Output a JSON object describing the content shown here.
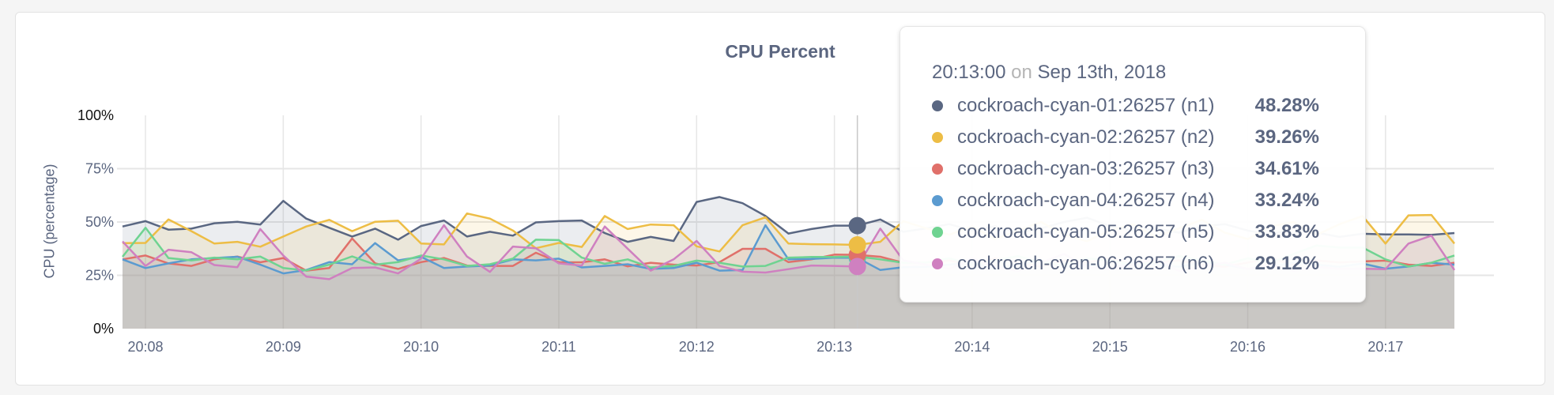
{
  "chart_data": {
    "type": "area",
    "title": "CPU Percent",
    "ylabel": "CPU (percentage)",
    "xlabel": "",
    "ylim": [
      0,
      100
    ],
    "y_ticks": [
      "0%",
      "25%",
      "50%",
      "75%",
      "100%"
    ],
    "y_tick_values": [
      0,
      25,
      50,
      75,
      100
    ],
    "x_ticks": [
      "20:08",
      "20:09",
      "20:10",
      "20:11",
      "20:12",
      "20:13",
      "20:14",
      "20:15",
      "20:16",
      "20:17"
    ],
    "grid": true,
    "x": [
      "20:07:40",
      "20:07:50",
      "20:08:00",
      "20:08:10",
      "20:08:20",
      "20:08:30",
      "20:08:40",
      "20:08:50",
      "20:09:00",
      "20:09:10",
      "20:09:20",
      "20:09:30",
      "20:09:40",
      "20:09:50",
      "20:10:00",
      "20:10:10",
      "20:10:20",
      "20:10:30",
      "20:10:40",
      "20:10:50",
      "20:11:00",
      "20:11:10",
      "20:11:20",
      "20:11:30",
      "20:11:40",
      "20:11:50",
      "20:12:00",
      "20:12:10",
      "20:12:20",
      "20:12:30",
      "20:12:40",
      "20:12:50",
      "20:13:00",
      "20:13:10",
      "20:13:20",
      "20:13:30",
      "20:13:40",
      "20:13:50",
      "20:14:00",
      "20:14:10",
      "20:14:20",
      "20:14:30",
      "20:14:40",
      "20:14:50",
      "20:15:00",
      "20:15:10",
      "20:15:20",
      "20:15:30",
      "20:15:40",
      "20:15:50",
      "20:16:00",
      "20:16:10",
      "20:16:20",
      "20:16:30",
      "20:16:40",
      "20:16:50",
      "20:17:00",
      "20:17:10",
      "20:17:20"
    ],
    "hover_index": 32,
    "series": [
      {
        "name": "cockroach-cyan-01:26257 (n1)",
        "color": "#5a6782",
        "values": [
          47.9,
          50.4,
          46.4,
          46.9,
          49.4,
          50.1,
          48.8,
          59.9,
          51.6,
          47.3,
          43.2,
          46.9,
          41.7,
          48.1,
          50.7,
          43.2,
          45.4,
          43.6,
          49.8,
          50.4,
          50.7,
          44.8,
          40.7,
          43.0,
          41.1,
          59.4,
          61.7,
          58.8,
          52.8,
          44.6,
          46.7,
          48.3,
          48.28,
          51.2,
          45.4,
          47,
          49,
          46,
          48,
          45,
          47,
          50,
          52,
          48,
          46,
          47,
          45,
          48,
          49,
          46,
          44,
          47,
          45,
          43,
          44.5,
          44.2,
          44.2,
          44.0,
          44.8
        ]
      },
      {
        "name": "cockroach-cyan-02:26257 (n2)",
        "color": "#edbd45",
        "values": [
          40.1,
          40.2,
          51.2,
          45.7,
          39.9,
          40.7,
          38.4,
          43.2,
          47.9,
          51.0,
          45.7,
          50.1,
          50.6,
          39.9,
          39.5,
          54.0,
          51.6,
          46.0,
          37.7,
          40.2,
          38.3,
          52.8,
          46.7,
          48.8,
          48.5,
          38.6,
          36.2,
          48.5,
          52.2,
          39.9,
          39.6,
          39.5,
          39.26,
          40.7,
          50.4,
          47,
          44,
          48,
          42,
          46,
          50,
          44,
          41,
          46,
          49,
          43,
          47,
          51,
          45,
          42,
          48,
          50,
          44,
          49,
          52.8,
          39.9,
          53.1,
          53.3,
          39.9
        ]
      },
      {
        "name": "cockroach-cyan-03:26257 (n3)",
        "color": "#e0706a",
        "values": [
          32.5,
          34.3,
          30.6,
          29.4,
          32.5,
          33.8,
          31.1,
          33.1,
          27.2,
          28.4,
          42.3,
          30.6,
          28.0,
          31.2,
          33.1,
          29.6,
          29.4,
          29.4,
          35.6,
          31.1,
          31.1,
          32.5,
          29.2,
          30.9,
          30.0,
          29.6,
          31.2,
          37.4,
          37.4,
          31.2,
          32.5,
          34.7,
          34.61,
          33.7,
          30.9,
          31,
          32,
          30,
          33,
          31,
          29,
          32,
          31,
          33,
          30,
          31,
          32,
          30,
          29,
          31,
          33,
          30,
          32,
          31,
          31.5,
          31.9,
          30.0,
          29.4,
          30.9
        ]
      },
      {
        "name": "cockroach-cyan-04:26257 (n4)",
        "color": "#5b9bd0",
        "values": [
          32.5,
          28.4,
          30.6,
          32.5,
          33.1,
          33.7,
          30.0,
          25.9,
          27.5,
          31.2,
          30.2,
          40.1,
          32.0,
          33.7,
          28.4,
          29.1,
          29.6,
          32.5,
          32.0,
          32.8,
          28.7,
          29.4,
          30.2,
          28.0,
          28.4,
          30.9,
          27.2,
          27.5,
          48.5,
          32.5,
          32.7,
          33.3,
          33.24,
          27.5,
          28.8,
          29,
          30,
          31,
          28,
          30,
          32,
          29,
          30,
          28,
          31,
          30,
          29,
          31,
          30,
          28,
          29,
          31,
          30,
          29,
          30.5,
          28.1,
          29.1,
          30.9,
          30.0
        ]
      },
      {
        "name": "cockroach-cyan-05:26257 (n5)",
        "color": "#6fd391",
        "values": [
          33.7,
          47.3,
          33.1,
          32.0,
          33.3,
          32.5,
          33.8,
          28.4,
          27.3,
          30.0,
          33.9,
          30.0,
          31.2,
          34.3,
          32.5,
          29.4,
          30.2,
          32.8,
          41.7,
          41.5,
          33.3,
          30.4,
          32.5,
          28.7,
          29.4,
          31.9,
          30.9,
          29.1,
          29.4,
          33.3,
          33.6,
          33.6,
          33.83,
          32.5,
          30.9,
          31,
          33,
          30,
          32,
          34,
          31,
          30,
          33,
          32,
          30,
          31,
          34,
          32,
          30,
          33,
          31,
          35,
          39,
          38,
          38.0,
          32.5,
          29.1,
          30.9,
          34.3
        ]
      },
      {
        "name": "cockroach-cyan-06:26257 (n6)",
        "color": "#cf80c0",
        "values": [
          40.9,
          29.4,
          37.0,
          35.8,
          29.8,
          28.8,
          46.7,
          34.3,
          24.4,
          23.2,
          28.4,
          28.7,
          25.9,
          32.8,
          48.5,
          33.8,
          26.6,
          38.5,
          37.7,
          30.6,
          29.6,
          47.9,
          37.5,
          27.2,
          32.5,
          41.1,
          29.4,
          26.7,
          26.3,
          27.9,
          29.6,
          29.4,
          29.12,
          46.9,
          32.0,
          30,
          28,
          33,
          29,
          27,
          31,
          35,
          29,
          28,
          30,
          33,
          27,
          29,
          31,
          28,
          30,
          27,
          29,
          28,
          28.1,
          27.9,
          39.9,
          43.6,
          27.5
        ]
      }
    ]
  },
  "tooltip": {
    "time": "20:13:00",
    "on": "on",
    "date": "Sep 13th, 2018",
    "rows": [
      {
        "name": "cockroach-cyan-01:26257 (n1)",
        "value": "48.28%",
        "color": "#5a6782"
      },
      {
        "name": "cockroach-cyan-02:26257 (n2)",
        "value": "39.26%",
        "color": "#edbd45"
      },
      {
        "name": "cockroach-cyan-03:26257 (n3)",
        "value": "34.61%",
        "color": "#e0706a"
      },
      {
        "name": "cockroach-cyan-04:26257 (n4)",
        "value": "33.24%",
        "color": "#5b9bd0"
      },
      {
        "name": "cockroach-cyan-05:26257 (n5)",
        "value": "33.83%",
        "color": "#6fd391"
      },
      {
        "name": "cockroach-cyan-06:26257 (n6)",
        "value": "29.12%",
        "color": "#cf80c0"
      }
    ]
  }
}
